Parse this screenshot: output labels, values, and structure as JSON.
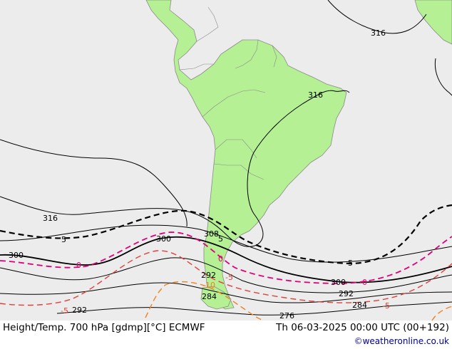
{
  "map": {
    "colors": {
      "ocean": "#ececec",
      "land": "#b5f094",
      "coast": "#8a8a8a",
      "height_contour": "#000000",
      "temp_zero": "#e0007a",
      "temp_neg": "#e0403a",
      "temp_cold": "#f08020"
    },
    "height_labels": [
      "316",
      "316",
      "316",
      "308",
      "300",
      "300",
      "300",
      "292",
      "292",
      "292",
      "284",
      "284",
      "276"
    ],
    "temp_labels": [
      "5",
      "5",
      "5",
      "0",
      "0",
      "0",
      "-5",
      "-5",
      "-5",
      "-10"
    ]
  },
  "footer": {
    "title": "Height/Temp. 700 hPa [gdmp][°C] ECMWF",
    "datetime": "Th 06-03-2025 00:00 UTC (00+192)",
    "credit": "©weatheronline.co.uk"
  }
}
